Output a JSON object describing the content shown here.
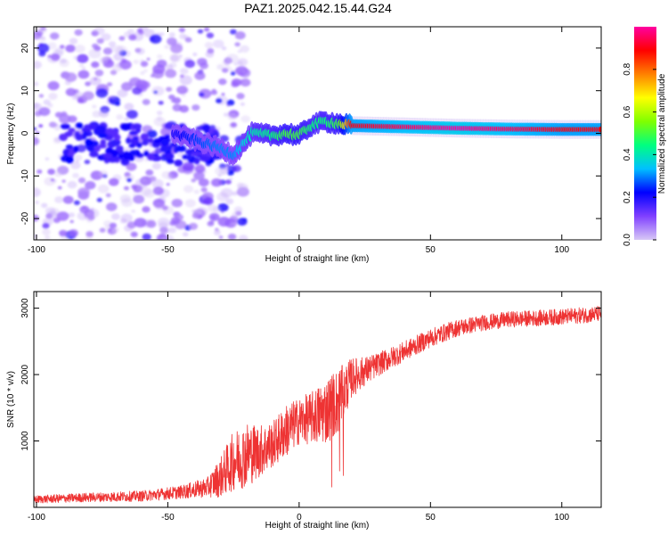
{
  "title": "PAZ1.2025.042.15.44.G24",
  "chart_data": [
    {
      "type": "heatmap",
      "name": "spectrogram",
      "xlabel": "Height of straight line (km)",
      "ylabel": "Frequency (Hz)",
      "xlim": [
        -101,
        115
      ],
      "ylim": [
        -25,
        25
      ],
      "xticks": [
        -100,
        -50,
        0,
        50,
        100
      ],
      "yticks": [
        -20,
        -10,
        0,
        10,
        20
      ],
      "grid": false,
      "colorbar": {
        "label": "Normalized spectral amplitude",
        "range": [
          0,
          1
        ],
        "ticks": [
          0.0,
          0.2,
          0.4,
          0.6,
          0.8
        ],
        "colormap": [
          "#d8c8f6",
          "#8040ff",
          "#0000ff",
          "#00c0ff",
          "#00ff80",
          "#80ff00",
          "#ffff00",
          "#ff8000",
          "#ff0000",
          "#ff00a0"
        ]
      },
      "ridge": {
        "x": [
          -48,
          -40,
          -30,
          -25,
          -22,
          -18,
          -10,
          -5,
          0,
          5,
          10,
          15,
          20,
          40,
          60,
          80,
          100,
          115
        ],
        "y": [
          0,
          -1.5,
          -3.5,
          -5,
          -3,
          0,
          -0.5,
          0,
          -0.5,
          2,
          2.8,
          2.3,
          1.8,
          1.5,
          1.2,
          1.0,
          0.9,
          0.9
        ],
        "amplitude": [
          0.2,
          0.25,
          0.3,
          0.3,
          0.35,
          0.4,
          0.45,
          0.5,
          0.5,
          0.45,
          0.45,
          0.5,
          0.9,
          0.95,
          1.0,
          0.95,
          0.9,
          0.9
        ]
      },
      "noise_extent_km": [
        -101,
        -20
      ]
    },
    {
      "type": "line",
      "name": "snr",
      "xlabel": "Height of straight line (km)",
      "ylabel": "SNR (10 * v/v)",
      "xlim": [
        -101,
        115
      ],
      "ylim": [
        0,
        3250
      ],
      "xticks": [
        -100,
        -50,
        0,
        50,
        100
      ],
      "yticks": [
        1000,
        2000,
        3000
      ],
      "color": "#ee3333",
      "series": [
        {
          "name": "SNR",
          "x": [
            -100,
            -80,
            -60,
            -45,
            -35,
            -30,
            -25,
            -20,
            -15,
            -10,
            -5,
            0,
            5,
            10,
            15,
            20,
            25,
            30,
            40,
            50,
            60,
            70,
            80,
            90,
            100,
            110,
            115
          ],
          "y": [
            120,
            150,
            170,
            230,
            300,
            450,
            700,
            800,
            850,
            950,
            1150,
            1300,
            1350,
            1450,
            1600,
            1950,
            2050,
            2150,
            2350,
            2550,
            2700,
            2780,
            2830,
            2850,
            2870,
            2900,
            2920
          ],
          "noise": [
            60,
            70,
            80,
            100,
            150,
            300,
            450,
            500,
            400,
            350,
            400,
            350,
            400,
            500,
            500,
            300,
            220,
            180,
            150,
            140,
            130,
            120,
            120,
            120,
            120,
            120,
            120
          ]
        }
      ]
    }
  ]
}
